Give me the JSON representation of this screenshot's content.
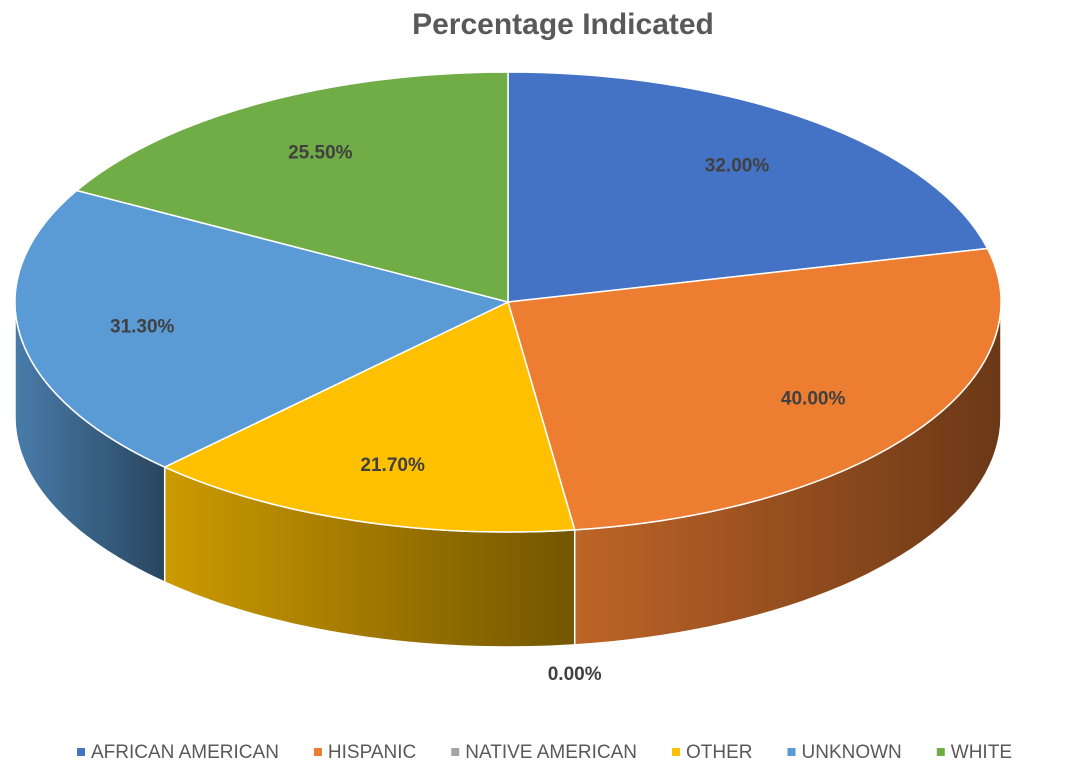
{
  "chart_data": {
    "type": "pie3d",
    "title": "Percentage Indicated",
    "categories": [
      "AFRICAN AMERICAN",
      "HISPANIC",
      "NATIVE AMERICAN",
      "OTHER",
      "UNKNOWN",
      "WHITE"
    ],
    "values": [
      32,
      40,
      0,
      21.7,
      31.3,
      25.5
    ],
    "value_labels": [
      "32.00%",
      "40.00%",
      "0.00%",
      "21.70%",
      "31.30%",
      "25.50%"
    ],
    "colors": [
      "#4472c4",
      "#ed7d31",
      "#a5a5a5",
      "#ffc000",
      "#5b9bd5",
      "#70ad47"
    ],
    "legend": "bottom"
  }
}
